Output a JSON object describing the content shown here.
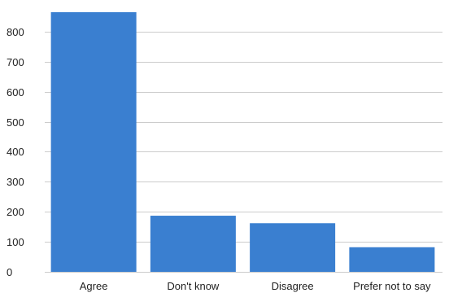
{
  "chart_data": {
    "type": "bar",
    "categories": [
      "Agree",
      "Don't know",
      "Disagree",
      "Prefer not to say"
    ],
    "values": [
      865,
      187,
      162,
      82
    ],
    "title": "",
    "xlabel": "",
    "ylabel": "",
    "ylim": [
      0,
      865
    ],
    "yticks": [
      0,
      100,
      200,
      300,
      400,
      500,
      600,
      700,
      800
    ],
    "grid": true,
    "legend": "none",
    "bar_color": "#3a7fd0",
    "grid_color": "#cccccc"
  }
}
